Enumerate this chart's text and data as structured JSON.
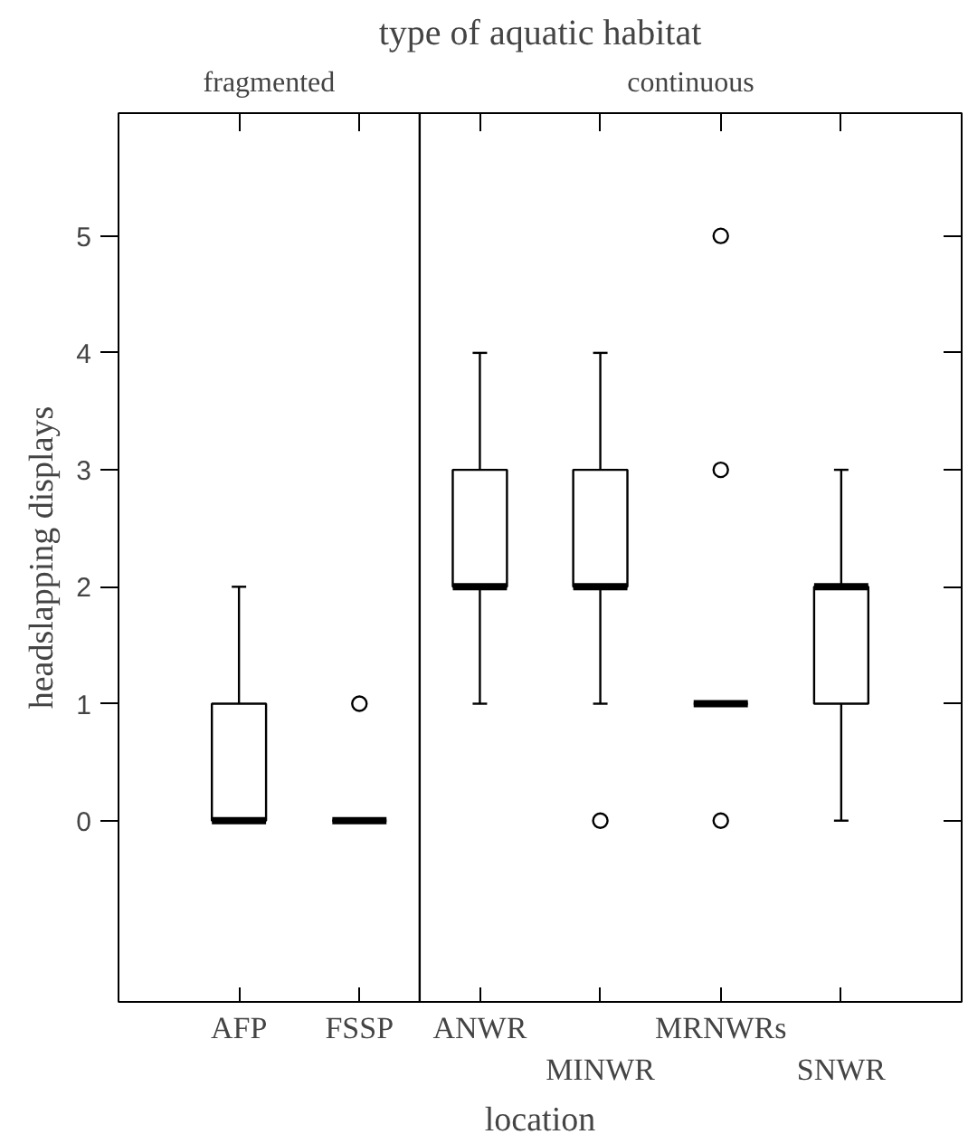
{
  "chart_data": {
    "type": "box",
    "title": "type of aquatic habitat",
    "xlabel": "location",
    "ylabel": "headslapping displays",
    "categories": [
      "AFP",
      "FSSP",
      "ANWR",
      "MINWR",
      "MRNWRs",
      "SNWR"
    ],
    "boxes": [
      {
        "low": 0,
        "q1": 0,
        "median": 0,
        "q3": 1,
        "high": 2
      },
      {
        "low": 0,
        "q1": 0,
        "median": 0,
        "q3": 0,
        "high": 0,
        "outliers": [
          1
        ]
      },
      {
        "low": 1,
        "q1": 2,
        "median": 2,
        "q3": 3,
        "high": 4
      },
      {
        "low": 1,
        "q1": 2,
        "median": 2,
        "q3": 3,
        "high": 4,
        "outliers": [
          0
        ]
      },
      {
        "low": 1,
        "q1": 1,
        "median": 1,
        "q3": 1,
        "high": 1,
        "outliers": [
          0,
          3,
          5
        ]
      },
      {
        "low": 0,
        "q1": 1,
        "median": 2,
        "q3": 2,
        "high": 3
      }
    ],
    "ylim": [
      -1.55,
      6.05
    ],
    "yticks": [
      0,
      1,
      2,
      3,
      4,
      5
    ],
    "annotations": [
      "fragmented",
      "continuous"
    ],
    "grid": false
  }
}
